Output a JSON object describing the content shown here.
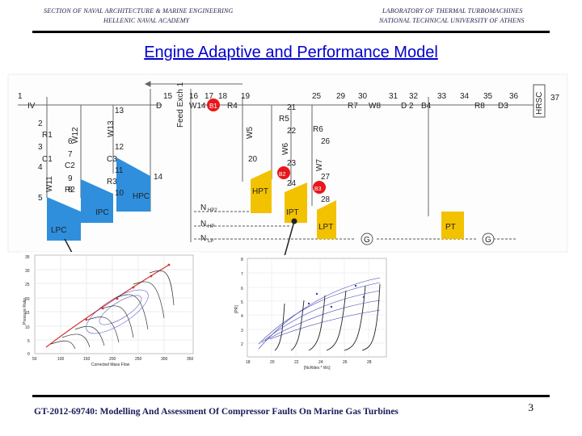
{
  "header": {
    "left_line1": "SECTION OF NAVAL ARCHITECTURE & MARINE ENGINEERING",
    "left_line2": "HELLENIC NAVAL ACADEMY",
    "right_line1": "LABORATORY OF THERMAL TURBOMACHINES",
    "right_line2": "NATIONAL TECHNICAL UNIVERSITY OF ATHENS"
  },
  "title": "Engine Adaptive and Performance Model",
  "diagram": {
    "station_numbers": [
      "1",
      "2",
      "3",
      "4",
      "5",
      "6",
      "7",
      "8",
      "9",
      "10",
      "11",
      "12",
      "13",
      "14",
      "15",
      "16",
      "17",
      "18",
      "19",
      "20",
      "21",
      "22",
      "23",
      "24",
      "25",
      "26",
      "27",
      "28",
      "29",
      "30",
      "31",
      "32",
      "33",
      "34",
      "35",
      "36",
      "37"
    ],
    "blocks": {
      "iv": "IV",
      "r1": "R1",
      "c1": "C1",
      "w11": "W11",
      "w12": "W12",
      "w13": "W13",
      "c2": "C2",
      "c3": "C3",
      "r2": "R2",
      "r3": "R3",
      "d": "D",
      "w14": "W14",
      "b1": "B1",
      "r4": "R4",
      "feed_exch": "Feed Exch 1",
      "r5": "R5",
      "w5": "W5",
      "w6": "W6",
      "r6": "R6",
      "w7": "W7",
      "b2": "B2",
      "b3": "B3",
      "r7": "R7",
      "w8": "W8",
      "d2": "D 2",
      "b4": "B4",
      "r8": "R8",
      "d3": "D3",
      "hrsc": "HRSC"
    },
    "components": {
      "lpc": "LPC",
      "ipc": "IPC",
      "hpc": "HPC",
      "hpt": "HPT",
      "ipt": "IPT",
      "lpt": "LPT",
      "pt": "PT",
      "g1": "G",
      "g2": "G"
    },
    "shaft_labels": {
      "n_hp2": "N",
      "n_hp2_sub": "HP2",
      "n_hp": "N",
      "n_hp_sub": "HP",
      "n_lp": "N",
      "n_lp_sub": "LP"
    }
  },
  "compressor_map": {
    "ylabel": "Pressure Ratio",
    "xlabel": "Corrected Mass Flow",
    "y_ticks": [
      "35",
      "30",
      "25",
      "20",
      "15",
      "10",
      "5",
      "0"
    ],
    "x_ticks": [
      "50",
      "100",
      "150",
      "200",
      "250",
      "300",
      "350"
    ]
  },
  "turbine_map": {
    "ylabel": "[PR]",
    "xlabel": "[NcRdes * Wc]",
    "y_ticks": [
      "8",
      "7",
      "6",
      "5",
      "4",
      "3",
      "2"
    ],
    "x_ticks": [
      "18",
      "20",
      "22",
      "24",
      "26",
      "28"
    ]
  },
  "footer": "GT-2012-69740: Modelling And Assessment Of Compressor Faults On Marine Gas Turbines",
  "page_number": "3",
  "colors": {
    "component": "#f2c200",
    "compressor": "#2f8fdc",
    "burner": "#e8161b",
    "title": "#0000cc"
  }
}
